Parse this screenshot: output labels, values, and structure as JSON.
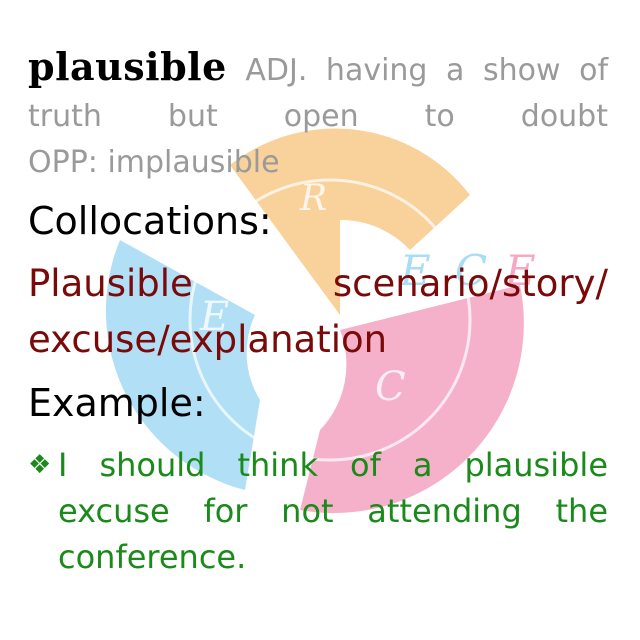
{
  "watermark": {
    "letters": [
      "R",
      "E",
      "C",
      "E",
      "C",
      "E"
    ],
    "colors": {
      "orange": "#f7c98a",
      "blue": "#a9dcf5",
      "pink": "#f5a9c4"
    }
  },
  "entry": {
    "word": "plausible",
    "definition": "ADJ. having a show of truth but open to doubt",
    "opposite": "OPP: implausible"
  },
  "collocations": {
    "heading": "Collocations:",
    "line1": "Plausible scenario/story/",
    "line2": "excuse/explanation"
  },
  "example": {
    "heading": "Example:",
    "bullet": "❖",
    "line1": "I should think of a plausible",
    "line2": "excuse for not attending the",
    "line3": "conference."
  }
}
